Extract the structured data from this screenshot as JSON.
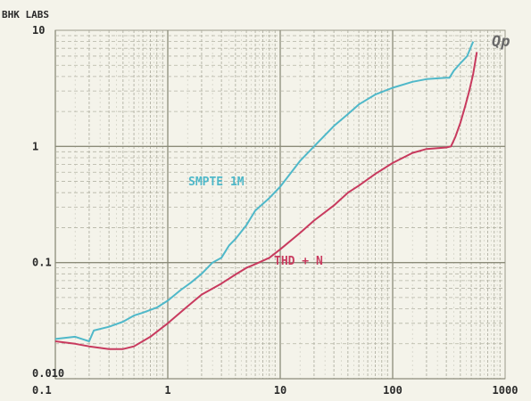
{
  "chart_data": {
    "type": "line",
    "title": "BHK LABS",
    "xlabel": "",
    "ylabel": "",
    "x_scale": "log",
    "y_scale": "log",
    "xlim": [
      0.1,
      1000
    ],
    "ylim": [
      0.01,
      10
    ],
    "grid": true,
    "x_tick_labels": [
      "0.1",
      "1",
      "10",
      "100",
      "1000"
    ],
    "x_tick_values": [
      0.1,
      1,
      10,
      100,
      1000
    ],
    "y_tick_labels": [
      "0.010",
      "0.1",
      "1",
      "10"
    ],
    "y_tick_values": [
      0.01,
      0.1,
      1,
      10
    ],
    "corner_annotation": "Qp",
    "series": [
      {
        "name": "SMPTE 1M",
        "color": "#4fb8c9",
        "points": [
          [
            0.1,
            0.022
          ],
          [
            0.15,
            0.023
          ],
          [
            0.2,
            0.021
          ],
          [
            0.22,
            0.026
          ],
          [
            0.3,
            0.028
          ],
          [
            0.4,
            0.031
          ],
          [
            0.5,
            0.035
          ],
          [
            0.6,
            0.037
          ],
          [
            0.8,
            0.041
          ],
          [
            1.0,
            0.047
          ],
          [
            1.3,
            0.058
          ],
          [
            1.6,
            0.067
          ],
          [
            2.0,
            0.08
          ],
          [
            2.5,
            0.1
          ],
          [
            3.0,
            0.11
          ],
          [
            3.5,
            0.14
          ],
          [
            4.0,
            0.16
          ],
          [
            5.0,
            0.21
          ],
          [
            6.0,
            0.28
          ],
          [
            8.0,
            0.36
          ],
          [
            10,
            0.45
          ],
          [
            15,
            0.75
          ],
          [
            20,
            1.0
          ],
          [
            30,
            1.5
          ],
          [
            40,
            1.9
          ],
          [
            50,
            2.3
          ],
          [
            70,
            2.8
          ],
          [
            100,
            3.2
          ],
          [
            150,
            3.6
          ],
          [
            200,
            3.8
          ],
          [
            300,
            3.9
          ],
          [
            320,
            3.9
          ],
          [
            350,
            4.5
          ],
          [
            400,
            5.2
          ],
          [
            460,
            6.0
          ],
          [
            520,
            8.0
          ]
        ]
      },
      {
        "name": "THD + N",
        "color": "#c83a5e",
        "points": [
          [
            0.1,
            0.021
          ],
          [
            0.15,
            0.02
          ],
          [
            0.2,
            0.019
          ],
          [
            0.3,
            0.018
          ],
          [
            0.4,
            0.018
          ],
          [
            0.5,
            0.019
          ],
          [
            0.7,
            0.023
          ],
          [
            1.0,
            0.03
          ],
          [
            1.5,
            0.042
          ],
          [
            2.0,
            0.053
          ],
          [
            3.0,
            0.066
          ],
          [
            4.0,
            0.079
          ],
          [
            5.0,
            0.09
          ],
          [
            6.0,
            0.097
          ],
          [
            8.0,
            0.11
          ],
          [
            10,
            0.13
          ],
          [
            15,
            0.18
          ],
          [
            20,
            0.23
          ],
          [
            30,
            0.31
          ],
          [
            40,
            0.4
          ],
          [
            50,
            0.46
          ],
          [
            70,
            0.58
          ],
          [
            100,
            0.72
          ],
          [
            150,
            0.88
          ],
          [
            200,
            0.95
          ],
          [
            300,
            0.98
          ],
          [
            330,
            1.0
          ],
          [
            360,
            1.2
          ],
          [
            400,
            1.6
          ],
          [
            440,
            2.2
          ],
          [
            480,
            3.0
          ],
          [
            520,
            4.2
          ],
          [
            560,
            6.5
          ]
        ]
      }
    ]
  }
}
